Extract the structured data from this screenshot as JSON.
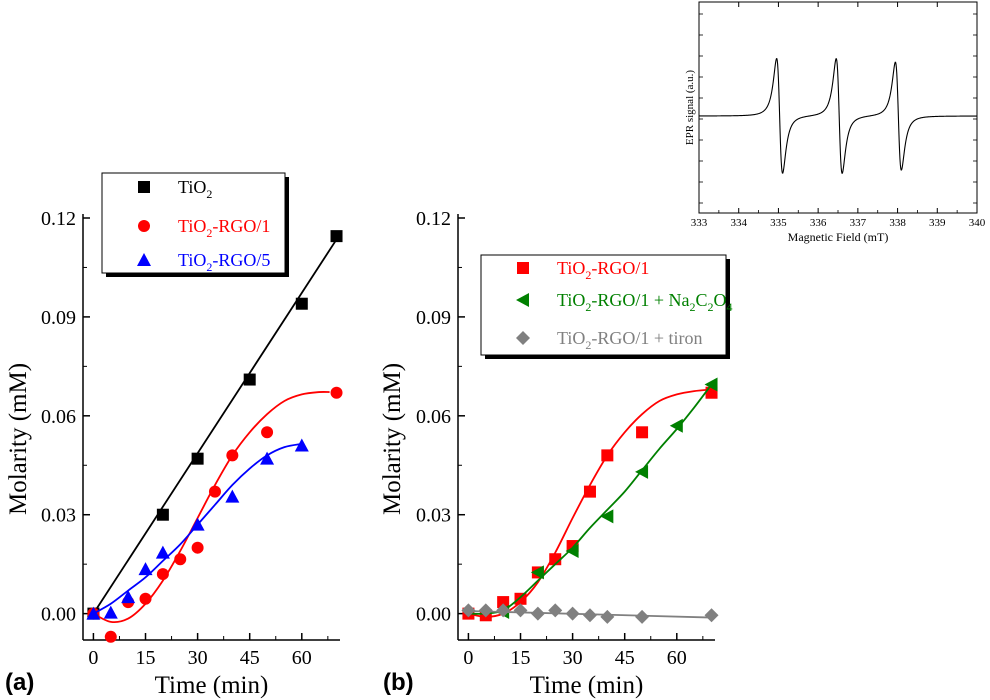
{
  "chart_data": [
    {
      "panel_label": "(a)",
      "type": "scatter",
      "xlabel": "Time (min)",
      "ylabel": "Molarity (mM)",
      "xlim": [
        -3,
        71
      ],
      "ylim": [
        -0.008,
        0.12
      ],
      "x_ticks": [
        0,
        15,
        30,
        45,
        60
      ],
      "x_tick_labels": [
        "0",
        "15",
        "30",
        "45",
        "60"
      ],
      "y_ticks": [
        0.0,
        0.03,
        0.06,
        0.09,
        0.12
      ],
      "y_tick_labels": [
        "0.00",
        "0.03",
        "0.06",
        "0.09",
        "0.12"
      ],
      "legend_position": "top-left",
      "series": [
        {
          "name": "TiO2",
          "legend_main": "TiO",
          "legend_sub": "2",
          "legend_rest": "",
          "color": "#000000",
          "marker": "square",
          "x": [
            0,
            20,
            30,
            45,
            60,
            70
          ],
          "y": [
            0.0,
            0.03,
            0.047,
            0.071,
            0.094,
            0.1145
          ],
          "fit_type": "linear",
          "fit": {
            "x": [
              0,
              70
            ],
            "y": [
              0.0,
              0.1135
            ]
          }
        },
        {
          "name": "TiO2-RGO/1",
          "legend_main": "TiO",
          "legend_sub": "2",
          "legend_rest": "-RGO/1",
          "color": "#ff0000",
          "marker": "circle",
          "x": [
            0,
            5,
            10,
            15,
            20,
            25,
            30,
            35,
            40,
            50,
            70
          ],
          "y": [
            0.0,
            -0.007,
            0.0035,
            0.0045,
            0.012,
            0.0165,
            0.02,
            0.037,
            0.048,
            0.055,
            0.067
          ],
          "fit_type": "sigmoid",
          "fit": {
            "x": [
              0,
              5,
              10,
              15,
              20,
              25,
              30,
              35,
              40,
              45,
              50,
              55,
              60,
              65,
              68
            ],
            "y": [
              0.0,
              -0.0025,
              -0.0015,
              0.003,
              0.01,
              0.019,
              0.029,
              0.039,
              0.048,
              0.055,
              0.0605,
              0.0645,
              0.0665,
              0.0672,
              0.0672
            ]
          }
        },
        {
          "name": "TiO2-RGO/5",
          "legend_main": "TiO",
          "legend_sub": "2",
          "legend_rest": "-RGO/5",
          "color": "#0000ff",
          "marker": "triangle-up",
          "x": [
            0,
            5,
            10,
            15,
            20,
            30,
            40,
            50,
            60
          ],
          "y": [
            0.0,
            0.0003,
            0.005,
            0.0135,
            0.0185,
            0.027,
            0.0355,
            0.047,
            0.051
          ],
          "fit_type": "smooth",
          "fit": {
            "x": [
              0,
              5,
              10,
              15,
              20,
              25,
              30,
              35,
              40,
              45,
              50,
              55,
              60
            ],
            "y": [
              0.0,
              0.003,
              0.007,
              0.011,
              0.016,
              0.021,
              0.027,
              0.033,
              0.039,
              0.044,
              0.048,
              0.0505,
              0.0515
            ]
          }
        }
      ]
    },
    {
      "panel_label": "(b)",
      "type": "scatter",
      "xlabel": "Time (min)",
      "ylabel": "Molarity (mM)",
      "xlim": [
        -3,
        71
      ],
      "ylim": [
        -0.008,
        0.12
      ],
      "x_ticks": [
        0,
        15,
        30,
        45,
        60
      ],
      "x_tick_labels": [
        "0",
        "15",
        "30",
        "45",
        "60"
      ],
      "y_ticks": [
        0.0,
        0.03,
        0.06,
        0.09,
        0.12
      ],
      "y_tick_labels": [
        "0.00",
        "0.03",
        "0.06",
        "0.09",
        "0.12"
      ],
      "legend_position": "top-left",
      "series": [
        {
          "name": "TiO2-RGO/1",
          "legend_main": "TiO",
          "legend_sub": "2",
          "legend_rest": "-RGO/1",
          "color": "#ff0000",
          "marker": "square",
          "x": [
            0,
            5,
            10,
            15,
            20,
            25,
            30,
            35,
            40,
            50,
            70
          ],
          "y": [
            0.0,
            -0.0005,
            0.0035,
            0.0045,
            0.0125,
            0.0165,
            0.0205,
            0.037,
            0.048,
            0.055,
            0.067
          ],
          "fit_type": "sigmoid",
          "fit": {
            "x": [
              0,
              5,
              10,
              15,
              20,
              25,
              30,
              35,
              40,
              45,
              50,
              55,
              60,
              65,
              70
            ],
            "y": [
              0.0,
              -0.001,
              0.0,
              0.0035,
              0.0095,
              0.0185,
              0.029,
              0.039,
              0.048,
              0.055,
              0.0605,
              0.0645,
              0.0665,
              0.0675,
              0.068
            ]
          }
        },
        {
          "name": "TiO2-RGO/1 + Na2C2O4",
          "legend_main": "TiO",
          "legend_sub": "2",
          "legend_rest": "-RGO/1 + Na",
          "legend_sub2": "2",
          "legend_rest2": "C",
          "legend_sub3": "2",
          "legend_rest3": "O",
          "legend_sub4": "4",
          "color": "#008000",
          "marker": "triangle-left",
          "x": [
            10,
            20,
            30,
            40,
            50,
            60,
            70
          ],
          "y": [
            0.0005,
            0.0125,
            0.019,
            0.0295,
            0.043,
            0.057,
            0.0695
          ],
          "fit_type": "smooth",
          "fit": {
            "x": [
              0,
              5,
              10,
              15,
              20,
              25,
              30,
              35,
              40,
              45,
              50,
              55,
              60,
              65,
              70
            ],
            "y": [
              0.0,
              0.0,
              0.001,
              0.005,
              0.01,
              0.015,
              0.02,
              0.026,
              0.0315,
              0.037,
              0.0435,
              0.05,
              0.056,
              0.0625,
              0.0695
            ]
          }
        },
        {
          "name": "TiO2-RGO/1 + tiron",
          "legend_main": "TiO",
          "legend_sub": "2",
          "legend_rest": "-RGO/1 + tiron",
          "color": "#808080",
          "marker": "diamond",
          "x": [
            0,
            5,
            10,
            15,
            20,
            25,
            30,
            35,
            40,
            50,
            70
          ],
          "y": [
            0.001,
            0.001,
            0.001,
            0.001,
            0.0,
            0.001,
            0.0,
            -0.0005,
            -0.001,
            -0.001,
            -0.0005
          ],
          "fit_type": "linear",
          "fit": {
            "x": [
              0,
              70
            ],
            "y": [
              0.0008,
              -0.0012
            ]
          }
        }
      ]
    },
    {
      "panel_label": "",
      "type": "line",
      "title": "",
      "xlabel": "Magnetic Field (mT)",
      "ylabel": "EPR signal (a.u.)",
      "xlim": [
        333,
        340
      ],
      "ylim": [
        -1,
        1
      ],
      "x_ticks": [
        333,
        334,
        335,
        336,
        337,
        338,
        339,
        340
      ],
      "x_tick_labels": [
        "333",
        "334",
        "335",
        "336",
        "337",
        "338",
        "339",
        "340"
      ],
      "y_ticks": [],
      "peaks": [
        {
          "center": 335.03,
          "amplitude": 0.85,
          "width": 0.13
        },
        {
          "center": 336.53,
          "amplitude": 0.85,
          "width": 0.13
        },
        {
          "center": 338.02,
          "amplitude": 0.8,
          "width": 0.13
        }
      ],
      "color": "#000000"
    }
  ],
  "panel_labels": [
    "(a)",
    "(b)"
  ]
}
